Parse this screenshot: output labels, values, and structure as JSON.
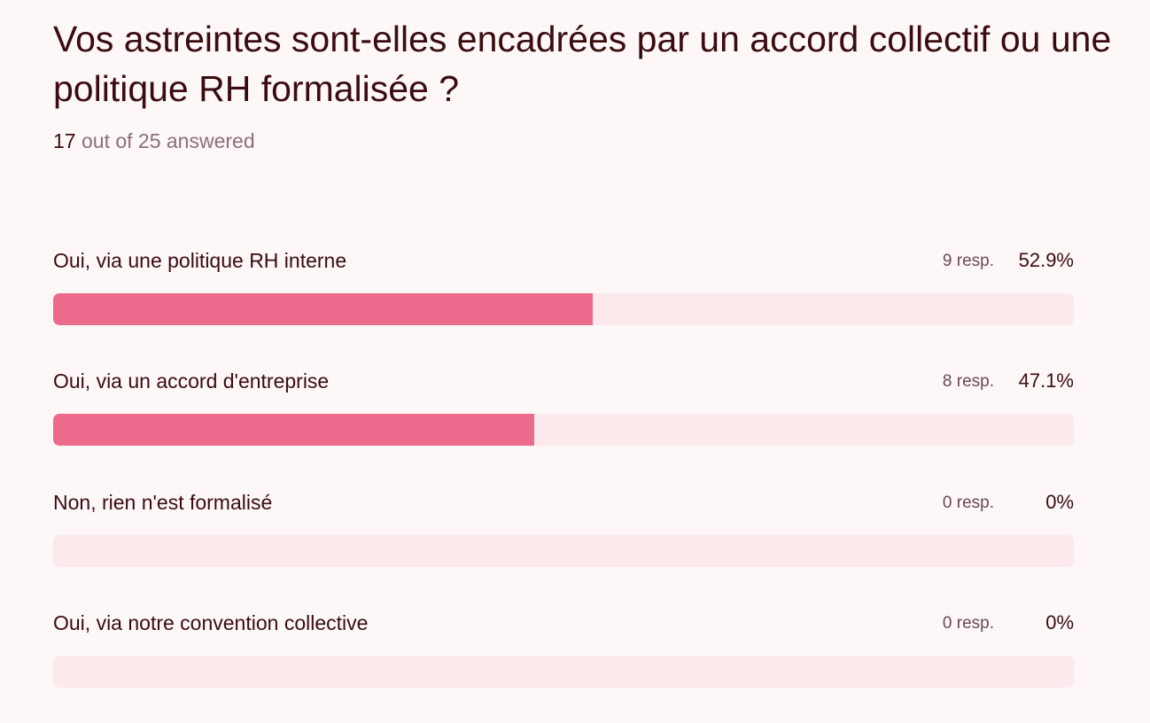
{
  "question": {
    "title": "Vos astreintes sont-elles encadrées par un accord collectif ou une politique RH formalisée ?",
    "answered_count": "17",
    "answered_suffix": " out of 25 answered"
  },
  "colors": {
    "background": "#fdf7f8",
    "bar_fill": "#ec6b8c",
    "bar_track": "#fbe9ec",
    "text": "#3a0c10"
  },
  "options": [
    {
      "label": "Oui, via une politique RH interne",
      "responses": "9 resp.",
      "percent": "52.9%",
      "fraction": 0.529
    },
    {
      "label": "Oui, via un accord d'entreprise",
      "responses": "8 resp.",
      "percent": "47.1%",
      "fraction": 0.471
    },
    {
      "label": "Non, rien n'est formalisé",
      "responses": "0 resp.",
      "percent": "0%",
      "fraction": 0
    },
    {
      "label": "Oui, via notre convention collective",
      "responses": "0 resp.",
      "percent": "0%",
      "fraction": 0
    }
  ]
}
